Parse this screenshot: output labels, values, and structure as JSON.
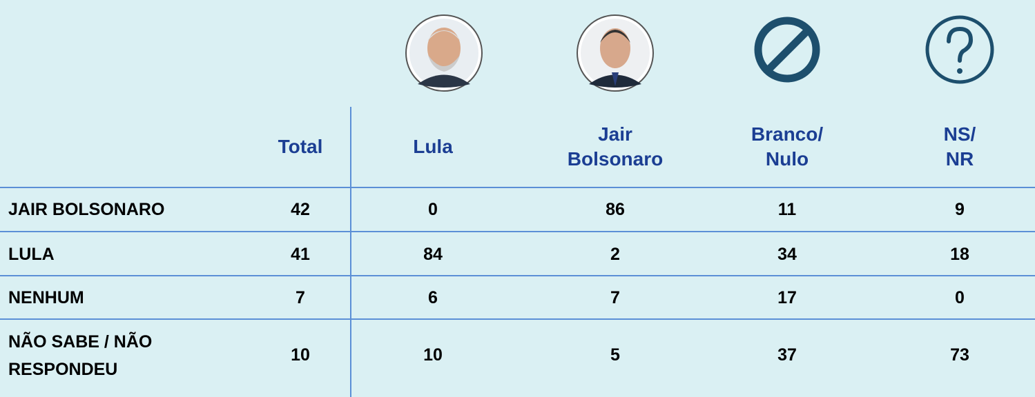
{
  "table": {
    "columns": [
      [
        "Total"
      ],
      [
        "Lula"
      ],
      [
        "Jair",
        "Bolsonaro"
      ],
      [
        "Branco/",
        "Nulo"
      ],
      [
        "NS/",
        "NR"
      ]
    ],
    "rows": [
      {
        "label": [
          "JAIR BOLSONARO"
        ],
        "cells": [
          "42",
          "0",
          "86",
          "11",
          "9"
        ]
      },
      {
        "label": [
          "LULA"
        ],
        "cells": [
          "41",
          "84",
          "2",
          "34",
          "18"
        ]
      },
      {
        "label": [
          "NENHUM"
        ],
        "cells": [
          "7",
          "6",
          "7",
          "17",
          "0"
        ]
      },
      {
        "label": [
          "NÃO SABE / NÃO",
          "RESPONDEU"
        ],
        "cells": [
          "10",
          "10",
          "5",
          "37",
          "73"
        ]
      }
    ]
  }
}
